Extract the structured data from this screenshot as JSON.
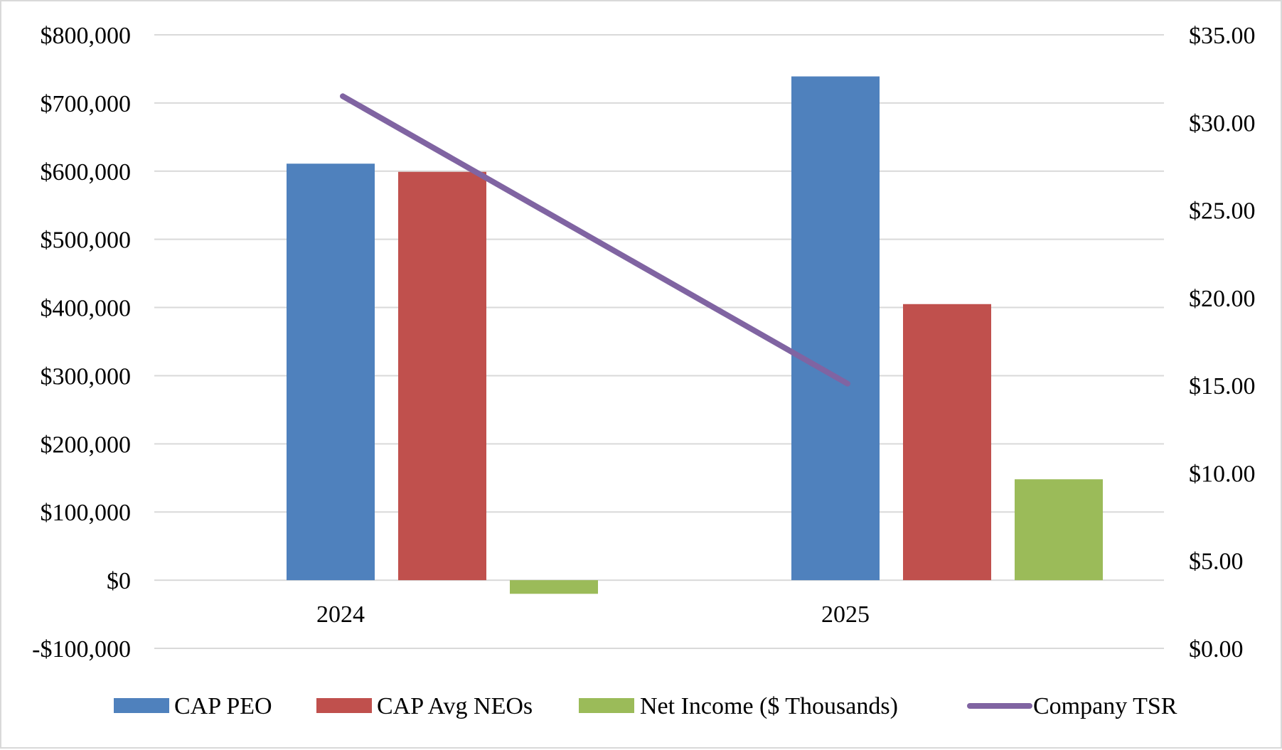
{
  "chart_data": {
    "type": "bar",
    "categories": [
      "2024",
      "2025"
    ],
    "series": [
      {
        "name": "CAP PEO",
        "kind": "bar",
        "axis": "left",
        "color": "#4f81bd",
        "values": [
          611000,
          739000
        ]
      },
      {
        "name": "CAP Avg NEOs",
        "kind": "bar",
        "axis": "left",
        "color": "#c0504d",
        "values": [
          599000,
          405000
        ]
      },
      {
        "name": "Net Income ($ Thousands)",
        "kind": "bar",
        "axis": "left",
        "color": "#9bbb59",
        "values": [
          -20000,
          148000
        ]
      },
      {
        "name": "Company TSR",
        "kind": "line",
        "axis": "right",
        "color": "#8064a2",
        "values": [
          31.5,
          15.1
        ]
      }
    ],
    "y_left": {
      "range": [
        -100000,
        800000
      ],
      "ticks": [
        -100000,
        0,
        100000,
        200000,
        300000,
        400000,
        500000,
        600000,
        700000,
        800000
      ],
      "tick_labels": [
        "-$100,000",
        "$0",
        "$100,000",
        "$200,000",
        "$300,000",
        "$400,000",
        "$500,000",
        "$600,000",
        "$700,000",
        "$800,000"
      ]
    },
    "y_right": {
      "range": [
        0,
        35
      ],
      "ticks": [
        0,
        5,
        10,
        15,
        20,
        25,
        30,
        35
      ],
      "tick_labels": [
        "$0.00",
        "$5.00",
        "$10.00",
        "$15.00",
        "$20.00",
        "$25.00",
        "$30.00",
        "$35.00"
      ]
    },
    "grid": true,
    "legend_position": "bottom"
  }
}
